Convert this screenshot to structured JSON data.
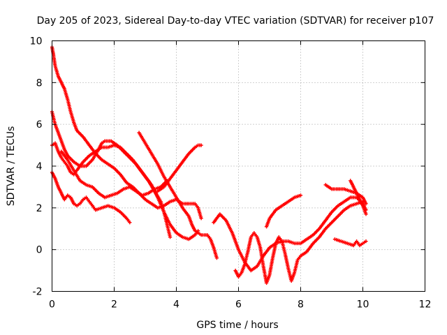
{
  "chart_data": {
    "type": "scatter",
    "title": "Day 205 of 2023, Sidereal Day-to-day VTEC variation (SDTVAR) for receiver p107",
    "xlabel": "GPS time / hours",
    "ylabel": "SDTVAR / TECUs",
    "xlim": [
      0,
      12
    ],
    "ylim": [
      -2,
      10
    ],
    "xticks": [
      "0",
      "2",
      "4",
      "6",
      "8",
      "10",
      "12"
    ],
    "yticks": [
      "-2",
      "0",
      "2",
      "4",
      "6",
      "8",
      "10"
    ],
    "grid": true,
    "marker": "plus",
    "color": "#ff0000",
    "series": [
      {
        "points": [
          [
            0.0,
            9.7
          ],
          [
            0.05,
            9.3
          ],
          [
            0.1,
            8.8
          ],
          [
            0.2,
            8.3
          ],
          [
            0.3,
            8.0
          ],
          [
            0.4,
            7.7
          ],
          [
            0.5,
            7.2
          ],
          [
            0.6,
            6.6
          ],
          [
            0.7,
            6.1
          ],
          [
            0.8,
            5.7
          ],
          [
            1.0,
            5.4
          ],
          [
            1.2,
            5.0
          ],
          [
            1.4,
            4.6
          ],
          [
            1.6,
            4.3
          ],
          [
            1.8,
            4.1
          ],
          [
            2.0,
            3.9
          ],
          [
            2.2,
            3.6
          ],
          [
            2.4,
            3.2
          ],
          [
            2.6,
            3.0
          ],
          [
            2.8,
            2.7
          ],
          [
            3.0,
            2.4
          ],
          [
            3.2,
            2.2
          ],
          [
            3.4,
            2.0
          ],
          [
            3.6,
            2.1
          ],
          [
            3.8,
            2.3
          ],
          [
            4.0,
            2.4
          ],
          [
            4.2,
            2.2
          ],
          [
            4.4,
            2.2
          ],
          [
            4.6,
            2.2
          ],
          [
            4.7,
            2.0
          ],
          [
            4.8,
            1.5
          ]
        ]
      },
      {
        "points": [
          [
            0.0,
            6.6
          ],
          [
            0.05,
            6.3
          ],
          [
            0.1,
            6.0
          ],
          [
            0.2,
            5.6
          ],
          [
            0.3,
            5.2
          ],
          [
            0.4,
            4.8
          ],
          [
            0.5,
            4.5
          ],
          [
            0.7,
            4.2
          ],
          [
            0.9,
            4.0
          ],
          [
            1.1,
            4.0
          ],
          [
            1.3,
            4.3
          ],
          [
            1.5,
            4.8
          ],
          [
            1.6,
            5.1
          ],
          [
            1.7,
            5.2
          ],
          [
            1.9,
            5.2
          ],
          [
            2.1,
            5.0
          ],
          [
            2.3,
            4.7
          ],
          [
            2.5,
            4.4
          ],
          [
            2.7,
            4.1
          ],
          [
            2.9,
            3.7
          ],
          [
            3.1,
            3.3
          ],
          [
            3.3,
            2.8
          ],
          [
            3.5,
            2.3
          ],
          [
            3.6,
            1.8
          ],
          [
            3.7,
            1.2
          ],
          [
            3.8,
            0.6
          ]
        ]
      },
      {
        "points": [
          [
            0.0,
            5.0
          ],
          [
            0.1,
            5.1
          ],
          [
            0.2,
            4.7
          ],
          [
            0.3,
            4.4
          ],
          [
            0.4,
            4.2
          ],
          [
            0.5,
            4.0
          ],
          [
            0.6,
            3.7
          ],
          [
            0.7,
            3.6
          ],
          [
            0.8,
            3.8
          ],
          [
            1.0,
            4.2
          ],
          [
            1.2,
            4.5
          ],
          [
            1.4,
            4.7
          ],
          [
            1.6,
            4.9
          ],
          [
            1.8,
            4.9
          ],
          [
            2.0,
            5.0
          ],
          [
            2.2,
            4.9
          ],
          [
            2.4,
            4.6
          ],
          [
            2.6,
            4.3
          ],
          [
            2.8,
            3.9
          ],
          [
            3.0,
            3.5
          ],
          [
            3.2,
            3.1
          ],
          [
            3.4,
            2.5
          ],
          [
            3.6,
            1.8
          ],
          [
            3.8,
            1.2
          ],
          [
            4.0,
            0.8
          ],
          [
            4.2,
            0.6
          ],
          [
            4.4,
            0.5
          ],
          [
            4.6,
            0.7
          ],
          [
            4.7,
            0.9
          ]
        ]
      },
      {
        "points": [
          [
            0.0,
            3.7
          ],
          [
            0.1,
            3.4
          ],
          [
            0.2,
            3.0
          ],
          [
            0.3,
            2.7
          ],
          [
            0.4,
            2.4
          ],
          [
            0.5,
            2.6
          ],
          [
            0.6,
            2.5
          ],
          [
            0.7,
            2.2
          ],
          [
            0.8,
            2.1
          ],
          [
            0.9,
            2.2
          ],
          [
            1.0,
            2.4
          ],
          [
            1.1,
            2.5
          ],
          [
            1.2,
            2.3
          ],
          [
            1.3,
            2.1
          ],
          [
            1.4,
            1.9
          ],
          [
            1.6,
            2.0
          ],
          [
            1.8,
            2.1
          ],
          [
            2.0,
            2.0
          ],
          [
            2.2,
            1.8
          ],
          [
            2.4,
            1.5
          ],
          [
            2.5,
            1.3
          ]
        ]
      },
      {
        "points": [
          [
            0.3,
            4.7
          ],
          [
            0.5,
            4.3
          ],
          [
            0.7,
            3.8
          ],
          [
            0.9,
            3.3
          ],
          [
            1.1,
            3.1
          ],
          [
            1.3,
            3.0
          ],
          [
            1.5,
            2.7
          ],
          [
            1.7,
            2.5
          ],
          [
            1.9,
            2.6
          ],
          [
            2.1,
            2.7
          ],
          [
            2.3,
            2.9
          ],
          [
            2.5,
            3.0
          ],
          [
            2.7,
            2.8
          ],
          [
            2.9,
            2.6
          ],
          [
            3.1,
            2.7
          ],
          [
            3.3,
            2.9
          ],
          [
            3.5,
            3.0
          ],
          [
            3.7,
            3.3
          ]
        ]
      },
      {
        "points": [
          [
            2.8,
            5.6
          ],
          [
            3.0,
            5.1
          ],
          [
            3.2,
            4.6
          ],
          [
            3.4,
            4.1
          ],
          [
            3.6,
            3.5
          ],
          [
            3.8,
            3.0
          ],
          [
            4.0,
            2.5
          ],
          [
            4.2,
            2.0
          ],
          [
            4.4,
            1.6
          ],
          [
            4.5,
            1.2
          ],
          [
            4.6,
            0.9
          ],
          [
            4.7,
            0.8
          ],
          [
            4.8,
            0.7
          ],
          [
            5.0,
            0.7
          ],
          [
            5.1,
            0.5
          ],
          [
            5.2,
            0.1
          ],
          [
            5.3,
            -0.4
          ]
        ]
      },
      {
        "points": [
          [
            3.4,
            2.8
          ],
          [
            3.6,
            3.0
          ],
          [
            3.8,
            3.4
          ],
          [
            4.0,
            3.8
          ],
          [
            4.2,
            4.2
          ],
          [
            4.4,
            4.6
          ],
          [
            4.6,
            4.9
          ],
          [
            4.7,
            5.0
          ],
          [
            4.8,
            5.0
          ]
        ]
      },
      {
        "points": [
          [
            5.2,
            1.3
          ],
          [
            5.4,
            1.7
          ],
          [
            5.6,
            1.4
          ],
          [
            5.8,
            0.8
          ],
          [
            6.0,
            0.0
          ],
          [
            6.2,
            -0.6
          ],
          [
            6.4,
            -1.0
          ],
          [
            6.6,
            -0.8
          ],
          [
            6.8,
            -0.3
          ],
          [
            7.0,
            0.1
          ],
          [
            7.2,
            0.3
          ],
          [
            7.4,
            0.4
          ],
          [
            7.6,
            0.4
          ],
          [
            7.8,
            0.3
          ],
          [
            8.0,
            0.3
          ],
          [
            8.2,
            0.5
          ],
          [
            8.4,
            0.7
          ],
          [
            8.6,
            1.0
          ],
          [
            8.8,
            1.4
          ],
          [
            9.0,
            1.8
          ],
          [
            9.2,
            2.1
          ],
          [
            9.4,
            2.3
          ],
          [
            9.6,
            2.5
          ],
          [
            9.8,
            2.5
          ],
          [
            10.0,
            2.2
          ],
          [
            10.1,
            1.9
          ]
        ]
      },
      {
        "points": [
          [
            5.9,
            -1.0
          ],
          [
            6.0,
            -1.3
          ],
          [
            6.1,
            -1.1
          ],
          [
            6.2,
            -0.7
          ],
          [
            6.3,
            -0.1
          ],
          [
            6.4,
            0.6
          ],
          [
            6.5,
            0.8
          ],
          [
            6.6,
            0.6
          ],
          [
            6.7,
            0.1
          ],
          [
            6.8,
            -0.8
          ],
          [
            6.9,
            -1.6
          ],
          [
            7.0,
            -1.2
          ],
          [
            7.1,
            -0.4
          ],
          [
            7.2,
            0.3
          ],
          [
            7.3,
            0.6
          ],
          [
            7.4,
            0.4
          ],
          [
            7.5,
            -0.2
          ],
          [
            7.6,
            -0.9
          ],
          [
            7.7,
            -1.5
          ],
          [
            7.8,
            -1.1
          ],
          [
            7.9,
            -0.5
          ],
          [
            8.0,
            -0.3
          ],
          [
            8.2,
            -0.1
          ],
          [
            8.4,
            0.3
          ],
          [
            8.6,
            0.6
          ],
          [
            8.8,
            1.0
          ],
          [
            9.0,
            1.3
          ],
          [
            9.2,
            1.6
          ],
          [
            9.4,
            1.9
          ],
          [
            9.6,
            2.1
          ],
          [
            9.8,
            2.2
          ],
          [
            10.0,
            2.3
          ]
        ]
      },
      {
        "points": [
          [
            6.9,
            1.1
          ],
          [
            7.0,
            1.5
          ],
          [
            7.2,
            1.9
          ],
          [
            7.4,
            2.1
          ],
          [
            7.6,
            2.3
          ],
          [
            7.8,
            2.5
          ],
          [
            8.0,
            2.6
          ]
        ]
      },
      {
        "points": [
          [
            8.8,
            3.1
          ],
          [
            9.0,
            2.9
          ],
          [
            9.2,
            2.9
          ],
          [
            9.4,
            2.9
          ],
          [
            9.6,
            2.8
          ],
          [
            9.8,
            2.7
          ],
          [
            10.0,
            2.5
          ],
          [
            10.1,
            2.2
          ]
        ]
      },
      {
        "points": [
          [
            9.1,
            0.5
          ],
          [
            9.3,
            0.4
          ],
          [
            9.5,
            0.3
          ],
          [
            9.7,
            0.2
          ],
          [
            9.8,
            0.4
          ],
          [
            9.9,
            0.2
          ],
          [
            10.0,
            0.3
          ],
          [
            10.1,
            0.4
          ]
        ]
      },
      {
        "points": [
          [
            9.6,
            3.3
          ],
          [
            9.7,
            3.0
          ],
          [
            9.8,
            2.7
          ],
          [
            9.9,
            2.4
          ],
          [
            10.0,
            2.1
          ],
          [
            10.1,
            1.7
          ]
        ]
      }
    ]
  }
}
